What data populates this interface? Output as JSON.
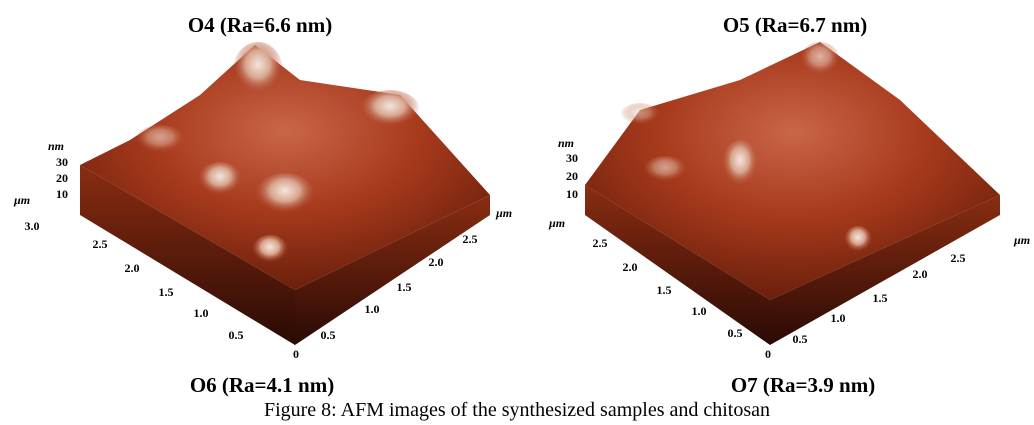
{
  "labels": {
    "top": [
      "O4 (Ra=6.6 nm)",
      "O5 (Ra=6.7 nm)"
    ],
    "bottom": [
      "O6 (Ra=4.1 nm)",
      "O7 (Ra=3.9 nm)"
    ]
  },
  "panels": [
    {
      "z_unit": "nm",
      "z_ticks": [
        "30",
        "20",
        "10"
      ],
      "left_unit": "µm",
      "left_ticks": [
        "3.0",
        "2.5",
        "2.0",
        "1.5",
        "1.0",
        "0.5"
      ],
      "origin": "0",
      "right_ticks": [
        "0.5",
        "1.0",
        "1.5",
        "2.0",
        "2.5"
      ],
      "right_unit": "µm"
    },
    {
      "z_unit": "nm",
      "z_ticks": [
        "30",
        "20",
        "10"
      ],
      "left_unit": "µm",
      "left_ticks": [
        "2.5",
        "2.0",
        "1.5",
        "1.0",
        "0.5"
      ],
      "origin": "0",
      "right_ticks": [
        "0.5",
        "1.0",
        "1.5",
        "2.0",
        "2.5"
      ],
      "right_unit": "µm"
    }
  ],
  "caption": "Figure 8: AFM images of the synthesized samples and chitosan"
}
